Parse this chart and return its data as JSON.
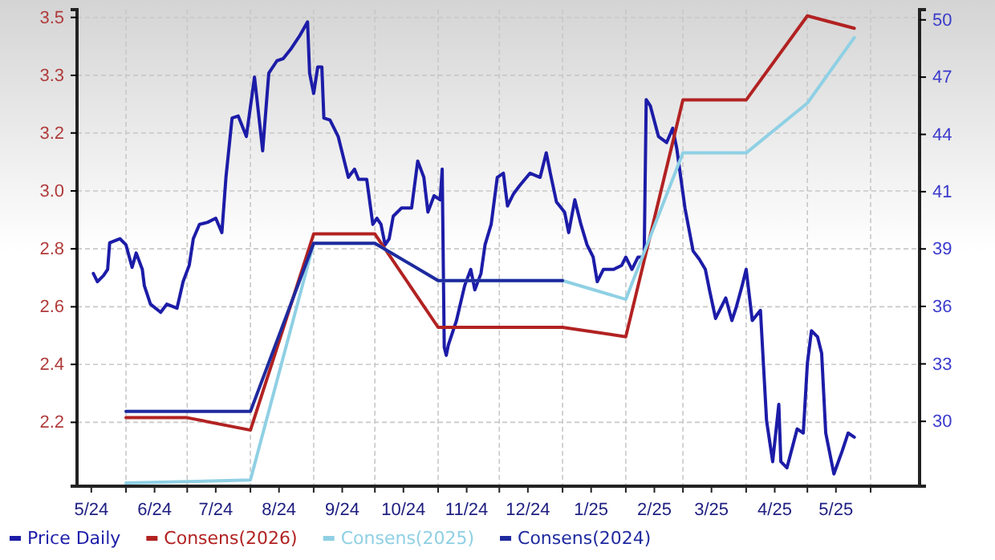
{
  "chart_data": {
    "type": "line",
    "xlim": [
      "2024-05-08",
      "2025-06-25"
    ],
    "xticks": [
      {
        "value": "2024-05-15",
        "label": "5/24"
      },
      {
        "value": "2024-06-01",
        "label": null
      },
      {
        "value": "2024-06-15",
        "label": "6/24"
      },
      {
        "value": "2024-07-01",
        "label": null
      },
      {
        "value": "2024-07-15",
        "label": "7/24"
      },
      {
        "value": "2024-08-01",
        "label": null
      },
      {
        "value": "2024-08-15",
        "label": "8/24"
      },
      {
        "value": "2024-09-01",
        "label": null
      },
      {
        "value": "2024-09-15",
        "label": "9/24"
      },
      {
        "value": "2024-10-01",
        "label": null
      },
      {
        "value": "2024-10-15",
        "label": "10/24"
      },
      {
        "value": "2024-11-01",
        "label": null
      },
      {
        "value": "2024-11-15",
        "label": "11/24"
      },
      {
        "value": "2024-12-01",
        "label": null
      },
      {
        "value": "2024-12-15",
        "label": "12/24"
      },
      {
        "value": "2025-01-01",
        "label": null
      },
      {
        "value": "2025-01-15",
        "label": "1/25"
      },
      {
        "value": "2025-02-01",
        "label": null
      },
      {
        "value": "2025-02-15",
        "label": "2/25"
      },
      {
        "value": "2025-03-01",
        "label": null
      },
      {
        "value": "2025-03-15",
        "label": "3/25"
      },
      {
        "value": "2025-04-01",
        "label": null
      },
      {
        "value": "2025-04-15",
        "label": "4/25"
      },
      {
        "value": "2025-05-01",
        "label": null
      },
      {
        "value": "2025-05-15",
        "label": "5/25"
      },
      {
        "value": "2025-06-01",
        "label": null
      }
    ],
    "ylim": [
      2.02,
      3.55
    ],
    "yticks": [
      {
        "value": 2.225,
        "label": "2.2"
      },
      {
        "value": 2.411,
        "label": "2.4"
      },
      {
        "value": 2.596,
        "label": "2.6"
      },
      {
        "value": 2.782,
        "label": "2.8"
      },
      {
        "value": 2.968,
        "label": "3.0"
      },
      {
        "value": 3.154,
        "label": "3.2"
      },
      {
        "value": 3.339,
        "label": "3.3"
      },
      {
        "value": 3.525,
        "label": "3.5"
      }
    ],
    "y2lim": [
      27.0,
      50.3
    ],
    "y2ticks": [
      {
        "value": 30.17,
        "label": "30"
      },
      {
        "value": 32.98,
        "label": "33"
      },
      {
        "value": 35.79,
        "label": "36"
      },
      {
        "value": 38.6,
        "label": "39"
      },
      {
        "value": 41.4,
        "label": "41"
      },
      {
        "value": 44.2,
        "label": "44"
      },
      {
        "value": 47.0,
        "label": "47"
      },
      {
        "value": 49.8,
        "label": "50"
      }
    ],
    "grid": true,
    "legend": "bottom",
    "marker": "none",
    "line_style": "solid",
    "series": [
      {
        "name": "Price Daily",
        "color": "#1c1ca8",
        "axis": "y2",
        "x": [
          "2024-05-16",
          "2024-05-18",
          "2024-05-21",
          "2024-05-23",
          "2024-05-24",
          "2024-05-29",
          "2024-06-01",
          "2024-06-04",
          "2024-06-06",
          "2024-06-09",
          "2024-06-10",
          "2024-06-13",
          "2024-06-18",
          "2024-06-21",
          "2024-06-26",
          "2024-06-29",
          "2024-07-02",
          "2024-07-04",
          "2024-07-07",
          "2024-07-11",
          "2024-07-15",
          "2024-07-18",
          "2024-07-20",
          "2024-07-23",
          "2024-07-26",
          "2024-07-30",
          "2024-08-03",
          "2024-08-07",
          "2024-08-10",
          "2024-08-14",
          "2024-08-17",
          "2024-08-21",
          "2024-08-25",
          "2024-08-29",
          "2024-08-30",
          "2024-09-01",
          "2024-09-03",
          "2024-09-05",
          "2024-09-06",
          "2024-09-09",
          "2024-09-13",
          "2024-09-18",
          "2024-09-21",
          "2024-09-23",
          "2024-09-27",
          "2024-09-30",
          "2024-10-02",
          "2024-10-04",
          "2024-10-06",
          "2024-10-08",
          "2024-10-10",
          "2024-10-14",
          "2024-10-19",
          "2024-10-22",
          "2024-10-25",
          "2024-10-27",
          "2024-10-30",
          "2024-11-02",
          "2024-11-03",
          "2024-11-04",
          "2024-11-05",
          "2024-11-06",
          "2024-11-10",
          "2024-11-14",
          "2024-11-17",
          "2024-11-19",
          "2024-11-22",
          "2024-11-24",
          "2024-11-27",
          "2024-11-30",
          "2024-12-03",
          "2024-12-05",
          "2024-12-08",
          "2024-12-11",
          "2024-12-16",
          "2024-12-21",
          "2024-12-24",
          "2024-12-26",
          "2024-12-29",
          "2025-01-02",
          "2025-01-04",
          "2025-01-07",
          "2025-01-10",
          "2025-01-13",
          "2025-01-16",
          "2025-01-18",
          "2025-01-21",
          "2025-01-26",
          "2025-01-30",
          "2025-02-01",
          "2025-02-04",
          "2025-02-07",
          "2025-02-10",
          "2025-02-11",
          "2025-02-13",
          "2025-02-17",
          "2025-02-21",
          "2025-02-24",
          "2025-02-26",
          "2025-03-02",
          "2025-03-06",
          "2025-03-09",
          "2025-03-12",
          "2025-03-14",
          "2025-03-17",
          "2025-03-22",
          "2025-03-25",
          "2025-03-27",
          "2025-03-30",
          "2025-04-01",
          "2025-04-04",
          "2025-04-08",
          "2025-04-11",
          "2025-04-14",
          "2025-04-17",
          "2025-04-18",
          "2025-04-21",
          "2025-04-26",
          "2025-04-29",
          "2025-05-01",
          "2025-05-03",
          "2025-05-06",
          "2025-05-08",
          "2025-05-10",
          "2025-05-14",
          "2025-05-18",
          "2025-05-21",
          "2025-05-24"
        ],
        "values": [
          37.4,
          37.0,
          37.3,
          37.6,
          38.9,
          39.1,
          38.8,
          37.7,
          38.4,
          37.6,
          36.8,
          35.9,
          35.5,
          35.9,
          35.7,
          37.0,
          37.8,
          39.1,
          39.8,
          39.9,
          40.1,
          39.4,
          42.1,
          45.0,
          45.1,
          44.1,
          47.0,
          43.4,
          47.2,
          47.8,
          47.9,
          48.4,
          49.0,
          49.7,
          47.2,
          46.2,
          47.5,
          47.5,
          45.0,
          44.9,
          44.1,
          42.1,
          42.5,
          42.0,
          42.0,
          39.8,
          40.1,
          39.8,
          38.8,
          39.1,
          40.2,
          40.6,
          40.6,
          42.9,
          42.1,
          40.4,
          41.2,
          41.0,
          42.5,
          33.8,
          33.4,
          33.9,
          35.1,
          36.8,
          37.6,
          36.6,
          37.4,
          38.8,
          39.8,
          42.1,
          42.3,
          40.7,
          41.3,
          41.7,
          42.3,
          42.1,
          43.3,
          42.3,
          40.9,
          40.4,
          39.4,
          41.0,
          39.8,
          38.8,
          38.2,
          37.0,
          37.6,
          37.6,
          37.8,
          38.2,
          37.6,
          38.2,
          38.2,
          45.9,
          45.6,
          44.1,
          43.8,
          44.5,
          43.5,
          40.6,
          38.5,
          38.1,
          37.6,
          36.6,
          35.2,
          36.2,
          35.1,
          35.7,
          36.8,
          37.6,
          35.1,
          35.6,
          30.2,
          28.2,
          31.0,
          28.2,
          27.9,
          29.8,
          29.6,
          33.0,
          34.6,
          34.3,
          33.5,
          29.6,
          27.6,
          28.7,
          29.6,
          29.4
        ]
      },
      {
        "name": "Consens(2026)",
        "color": "#b22222",
        "x": [
          "2024-06-01",
          "2024-07-01",
          "2024-08-01",
          "2024-09-01",
          "2024-10-01",
          "2024-11-01",
          "2025-01-01",
          "2025-02-01",
          "2025-03-01",
          "2025-04-01",
          "2025-05-01",
          "2025-05-24"
        ],
        "values": [
          2.24,
          2.24,
          2.2,
          2.83,
          2.83,
          2.53,
          2.53,
          2.5,
          3.26,
          3.26,
          3.53,
          3.49
        ]
      },
      {
        "name": "Consens(2025)",
        "color": "#8fd0e4",
        "x": [
          "2024-06-01",
          "2024-08-01",
          "2024-09-01",
          "2024-10-01",
          "2024-11-01",
          "2025-01-01",
          "2025-02-01",
          "2025-03-01",
          "2025-04-01",
          "2025-05-01",
          "2025-05-24"
        ],
        "values": [
          2.03,
          2.04,
          2.8,
          2.8,
          2.68,
          2.68,
          2.62,
          3.09,
          3.09,
          3.25,
          3.46
        ]
      },
      {
        "name": "Consens(2024)",
        "color": "#1f2a9e",
        "x": [
          "2024-06-01",
          "2024-08-01",
          "2024-09-01",
          "2024-10-01",
          "2024-11-01",
          "2025-01-01"
        ],
        "values": [
          2.26,
          2.26,
          2.8,
          2.8,
          2.68,
          2.68
        ]
      }
    ]
  }
}
